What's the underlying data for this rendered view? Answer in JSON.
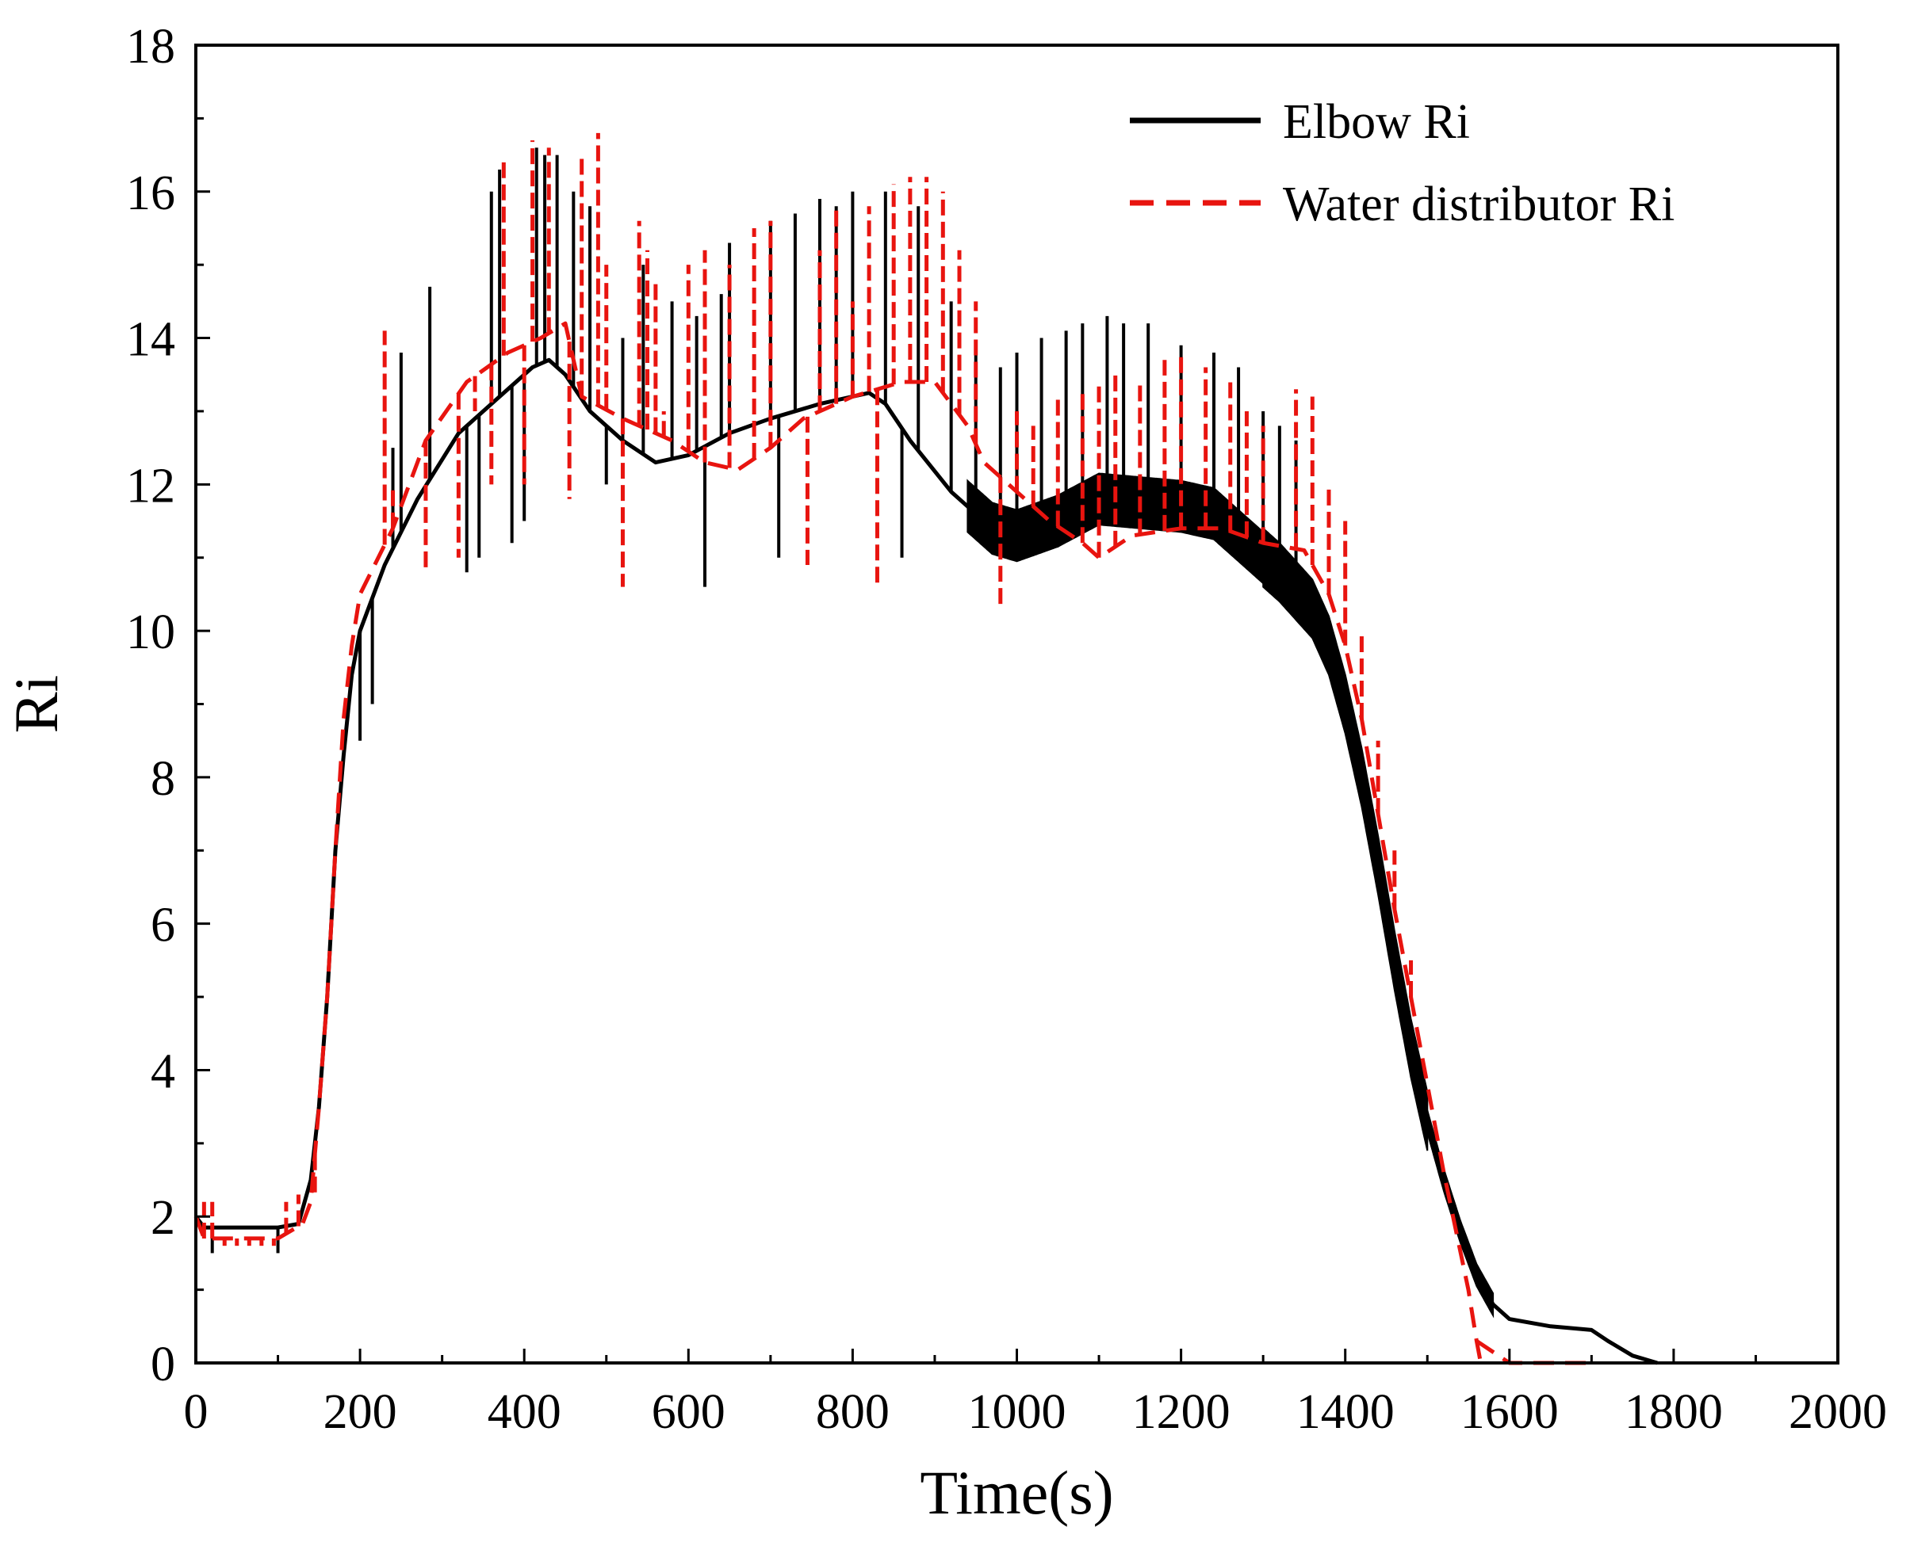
{
  "chart_data": {
    "type": "line",
    "title": "",
    "xlabel": "Time(s)",
    "ylabel": "Ri",
    "xlim": [
      0,
      2000
    ],
    "ylim": [
      0,
      18
    ],
    "xticks": [
      0,
      200,
      400,
      600,
      800,
      1000,
      1200,
      1400,
      1600,
      1800,
      2000
    ],
    "yticks": [
      0,
      2,
      4,
      6,
      8,
      10,
      12,
      14,
      16,
      18
    ],
    "grid": false,
    "legend_position": "top-right",
    "colors": {
      "elbow": "#000000",
      "water": "#e8140f"
    },
    "series": [
      {
        "name": "Elbow Ri",
        "style": "solid",
        "baseline": [
          [
            0,
            2.0
          ],
          [
            10,
            1.85
          ],
          [
            100,
            1.85
          ],
          [
            125,
            1.9
          ],
          [
            140,
            2.5
          ],
          [
            150,
            3.5
          ],
          [
            160,
            5.0
          ],
          [
            170,
            7.0
          ],
          [
            180,
            8.3
          ],
          [
            190,
            9.4
          ],
          [
            200,
            10.0
          ],
          [
            230,
            10.9
          ],
          [
            270,
            11.8
          ],
          [
            320,
            12.7
          ],
          [
            370,
            13.2
          ],
          [
            410,
            13.6
          ],
          [
            430,
            13.7
          ],
          [
            450,
            13.5
          ],
          [
            480,
            13.0
          ],
          [
            520,
            12.6
          ],
          [
            560,
            12.3
          ],
          [
            600,
            12.4
          ],
          [
            650,
            12.7
          ],
          [
            700,
            12.9
          ],
          [
            760,
            13.1
          ],
          [
            820,
            13.25
          ],
          [
            840,
            13.1
          ],
          [
            870,
            12.6
          ],
          [
            920,
            11.9
          ],
          [
            970,
            11.4
          ],
          [
            1000,
            11.3
          ],
          [
            1050,
            11.5
          ],
          [
            1100,
            11.8
          ],
          [
            1150,
            11.75
          ],
          [
            1200,
            11.7
          ],
          [
            1240,
            11.6
          ],
          [
            1280,
            11.2
          ],
          [
            1320,
            10.8
          ],
          [
            1360,
            10.3
          ],
          [
            1380,
            9.8
          ],
          [
            1400,
            9.0
          ],
          [
            1420,
            8.0
          ],
          [
            1440,
            6.8
          ],
          [
            1460,
            5.5
          ],
          [
            1480,
            4.3
          ],
          [
            1500,
            3.3
          ],
          [
            1520,
            2.5
          ],
          [
            1540,
            1.8
          ],
          [
            1560,
            1.2
          ],
          [
            1580,
            0.8
          ],
          [
            1600,
            0.6
          ],
          [
            1650,
            0.5
          ],
          [
            1700,
            0.45
          ],
          [
            1720,
            0.3
          ],
          [
            1750,
            0.1
          ],
          [
            1780,
            0.0
          ]
        ],
        "spikes": [
          [
            20,
            1.5
          ],
          [
            100,
            1.5
          ],
          [
            200,
            8.5
          ],
          [
            215,
            9.0
          ],
          [
            240,
            12.5
          ],
          [
            250,
            13.8
          ],
          [
            285,
            14.7
          ],
          [
            330,
            10.8
          ],
          [
            345,
            11.0
          ],
          [
            360,
            16.0
          ],
          [
            370,
            16.3
          ],
          [
            385,
            11.2
          ],
          [
            400,
            11.5
          ],
          [
            415,
            16.6
          ],
          [
            425,
            16.5
          ],
          [
            440,
            16.5
          ],
          [
            460,
            16.0
          ],
          [
            480,
            15.8
          ],
          [
            500,
            12.0
          ],
          [
            520,
            14.0
          ],
          [
            545,
            15.0
          ],
          [
            580,
            14.5
          ],
          [
            610,
            14.3
          ],
          [
            620,
            10.6
          ],
          [
            640,
            14.6
          ],
          [
            650,
            15.3
          ],
          [
            700,
            15.6
          ],
          [
            710,
            11.0
          ],
          [
            730,
            15.7
          ],
          [
            760,
            15.9
          ],
          [
            780,
            15.8
          ],
          [
            800,
            16.0
          ],
          [
            840,
            16.0
          ],
          [
            860,
            11.0
          ],
          [
            880,
            15.8
          ],
          [
            920,
            14.5
          ],
          [
            950,
            13.9
          ],
          [
            980,
            13.6
          ],
          [
            1000,
            13.8
          ],
          [
            1030,
            14.0
          ],
          [
            1060,
            14.1
          ],
          [
            1080,
            14.2
          ],
          [
            1110,
            14.3
          ],
          [
            1130,
            14.2
          ],
          [
            1160,
            14.2
          ],
          [
            1200,
            13.9
          ],
          [
            1240,
            13.8
          ],
          [
            1270,
            13.6
          ],
          [
            1300,
            13.0
          ],
          [
            1320,
            12.8
          ],
          [
            1340,
            12.6
          ]
        ],
        "band": [
          [
            940,
            1300,
            0.35
          ],
          [
            1300,
            1500,
            0.4
          ],
          [
            1500,
            1580,
            0.15
          ]
        ]
      },
      {
        "name": "Water distributor Ri",
        "style": "dashed",
        "baseline": [
          [
            0,
            2.0
          ],
          [
            10,
            1.7
          ],
          [
            100,
            1.7
          ],
          [
            130,
            1.9
          ],
          [
            140,
            2.2
          ],
          [
            150,
            3.5
          ],
          [
            160,
            5.0
          ],
          [
            170,
            7.0
          ],
          [
            180,
            8.8
          ],
          [
            190,
            9.8
          ],
          [
            200,
            10.5
          ],
          [
            240,
            11.4
          ],
          [
            280,
            12.6
          ],
          [
            330,
            13.4
          ],
          [
            380,
            13.8
          ],
          [
            420,
            14.0
          ],
          [
            450,
            14.2
          ],
          [
            470,
            13.2
          ],
          [
            520,
            12.9
          ],
          [
            580,
            12.6
          ],
          [
            620,
            12.3
          ],
          [
            660,
            12.2
          ],
          [
            700,
            12.5
          ],
          [
            740,
            12.9
          ],
          [
            800,
            13.2
          ],
          [
            860,
            13.4
          ],
          [
            900,
            13.4
          ],
          [
            940,
            12.8
          ],
          [
            960,
            12.3
          ],
          [
            1000,
            11.9
          ],
          [
            1040,
            11.5
          ],
          [
            1080,
            11.2
          ],
          [
            1100,
            11.0
          ],
          [
            1140,
            11.3
          ],
          [
            1200,
            11.4
          ],
          [
            1250,
            11.4
          ],
          [
            1300,
            11.2
          ],
          [
            1350,
            11.1
          ],
          [
            1380,
            10.5
          ],
          [
            1400,
            9.8
          ],
          [
            1420,
            8.8
          ],
          [
            1440,
            7.5
          ],
          [
            1460,
            6.2
          ],
          [
            1480,
            5.0
          ],
          [
            1500,
            3.8
          ],
          [
            1520,
            2.6
          ],
          [
            1535,
            1.8
          ],
          [
            1550,
            1.0
          ],
          [
            1560,
            0.3
          ],
          [
            1565,
            0.0
          ]
        ],
        "spikes": [
          [
            10,
            2.2
          ],
          [
            20,
            2.2
          ],
          [
            35,
            1.6
          ],
          [
            50,
            1.6
          ],
          [
            65,
            1.6
          ],
          [
            80,
            1.6
          ],
          [
            95,
            1.6
          ],
          [
            110,
            2.2
          ],
          [
            125,
            2.3
          ],
          [
            145,
            2.3
          ],
          [
            230,
            14.1
          ],
          [
            240,
            12.0
          ],
          [
            280,
            10.8
          ],
          [
            320,
            11.0
          ],
          [
            340,
            13.0
          ],
          [
            360,
            12.0
          ],
          [
            375,
            16.4
          ],
          [
            400,
            12.0
          ],
          [
            410,
            16.7
          ],
          [
            430,
            16.6
          ],
          [
            455,
            11.8
          ],
          [
            470,
            16.5
          ],
          [
            490,
            16.8
          ],
          [
            500,
            15.0
          ],
          [
            520,
            10.6
          ],
          [
            540,
            15.6
          ],
          [
            550,
            15.2
          ],
          [
            560,
            14.8
          ],
          [
            570,
            13.0
          ],
          [
            600,
            15.0
          ],
          [
            620,
            15.2
          ],
          [
            650,
            15.0
          ],
          [
            680,
            15.5
          ],
          [
            700,
            15.6
          ],
          [
            745,
            10.9
          ],
          [
            760,
            15.2
          ],
          [
            780,
            15.8
          ],
          [
            800,
            14.5
          ],
          [
            820,
            15.8
          ],
          [
            830,
            10.6
          ],
          [
            850,
            16.1
          ],
          [
            870,
            16.2
          ],
          [
            890,
            16.2
          ],
          [
            910,
            16.0
          ],
          [
            930,
            15.2
          ],
          [
            950,
            14.5
          ],
          [
            980,
            10.3
          ],
          [
            1000,
            13.0
          ],
          [
            1020,
            12.8
          ],
          [
            1050,
            13.2
          ],
          [
            1080,
            13.3
          ],
          [
            1100,
            13.4
          ],
          [
            1120,
            13.5
          ],
          [
            1150,
            13.4
          ],
          [
            1180,
            13.7
          ],
          [
            1200,
            13.8
          ],
          [
            1230,
            13.6
          ],
          [
            1260,
            13.4
          ],
          [
            1280,
            13.0
          ],
          [
            1300,
            12.8
          ],
          [
            1340,
            13.3
          ],
          [
            1360,
            13.2
          ],
          [
            1380,
            12.0
          ],
          [
            1400,
            11.5
          ],
          [
            1420,
            10.0
          ],
          [
            1440,
            8.5
          ],
          [
            1460,
            7.0
          ],
          [
            1480,
            5.5
          ]
        ],
        "tail": [
          [
            1560,
            0.3
          ],
          [
            1600,
            0.0
          ],
          [
            1700,
            0.0
          ]
        ]
      }
    ]
  }
}
